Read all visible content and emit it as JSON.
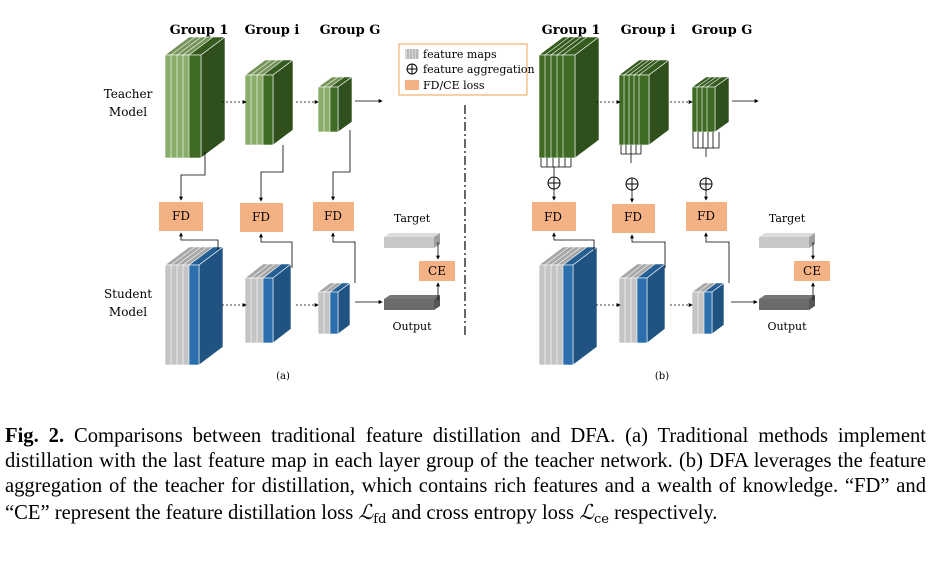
{
  "panel_a": {
    "group_labels": [
      "Group 1",
      "Group i",
      "Group G"
    ],
    "teacher_label": [
      "Teacher",
      "Model"
    ],
    "student_label": [
      "Student",
      "Model"
    ],
    "fd_label": "FD",
    "ce_label": "CE",
    "target_label": "Target",
    "output_label": "Output",
    "panel_label": "(a)"
  },
  "panel_b": {
    "group_labels": [
      "Group 1",
      "Group i",
      "Group G"
    ],
    "fd_label": "FD",
    "ce_label": "CE",
    "target_label": "Target",
    "output_label": "Output",
    "panel_label": "(b)"
  },
  "legend": {
    "feature_maps": "feature maps",
    "feature_aggregation": "feature aggregation",
    "loss": "FD/CE loss"
  },
  "colors": {
    "teacher_light": "#8aae6a",
    "teacher_dark": "#3f6b25",
    "student_light": "#c4c4c4",
    "student_blue": "#2c6fad",
    "loss_box": "#f4b183",
    "legend_border": "#f0a050"
  },
  "caption": {
    "fig_label": "Fig. 2.",
    "text_1": " Comparisons between traditional feature distillation and DFA. (a) Traditional methods implement distillation with the last feature map in each layer group of the teacher network. (b) DFA leverages the feature aggregation of the teacher for distillation, which contains rich features and a wealth of knowledge. “FD” and “CE” represent the feature distillation loss ",
    "loss_fd_symbol": "ℒ",
    "loss_fd_sub": "fd",
    "text_2": " and cross entropy loss ",
    "loss_ce_symbol": "ℒ",
    "loss_ce_sub": "ce",
    "text_3": " respectively."
  }
}
